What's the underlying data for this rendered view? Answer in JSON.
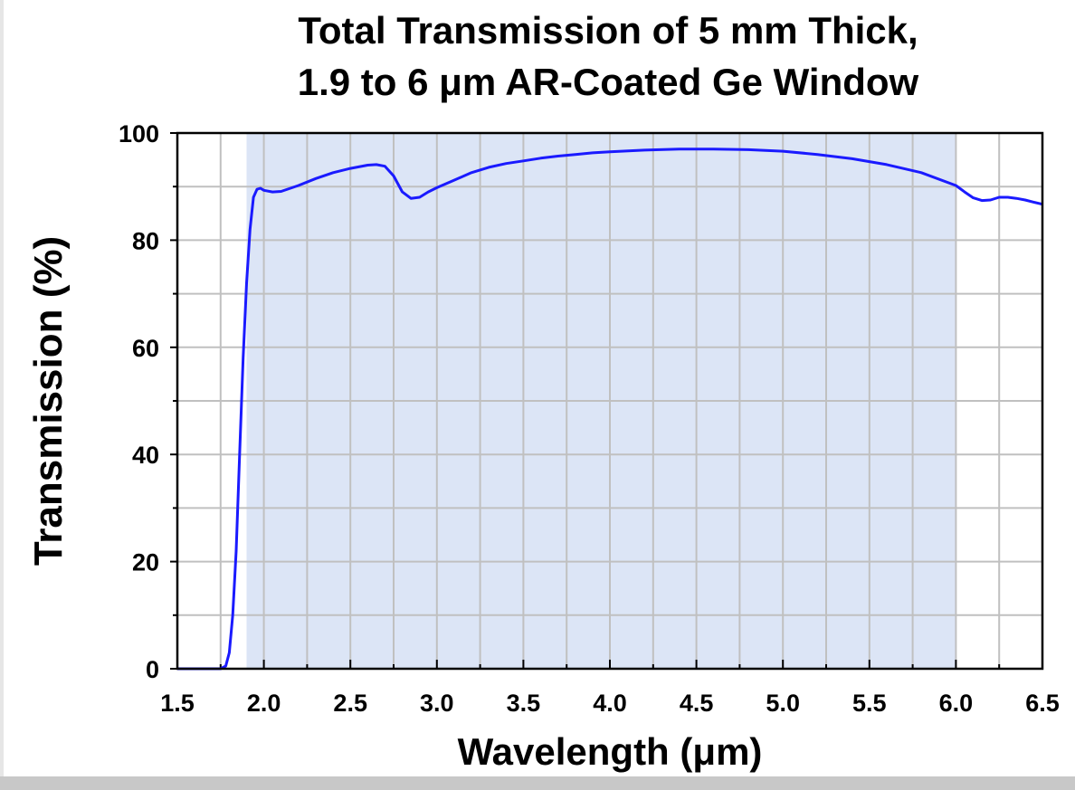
{
  "chart_data": {
    "type": "line",
    "title_lines": [
      "Total Transmission of 5 mm Thick,",
      "1.9 to 6 μm AR-Coated Ge Window"
    ],
    "xlabel": "Wavelength (μm)",
    "ylabel": "Transmission (%)",
    "xlim": [
      1.5,
      6.5
    ],
    "ylim": [
      0,
      100
    ],
    "x_ticks": [
      1.5,
      2.0,
      2.5,
      3.0,
      3.5,
      4.0,
      4.5,
      5.0,
      5.5,
      6.0,
      6.5
    ],
    "x_tick_labels": [
      "1.5",
      "2.0",
      "2.5",
      "3.0",
      "3.5",
      "4.0",
      "4.5",
      "5.0",
      "5.5",
      "6.0",
      "6.5"
    ],
    "y_ticks": [
      0,
      20,
      40,
      60,
      80,
      100
    ],
    "y_tick_labels": [
      "0",
      "20",
      "40",
      "60",
      "80",
      "100"
    ],
    "grid": true,
    "shaded_region": {
      "x_start": 1.9,
      "x_end": 6.0,
      "color": "#dce5f6"
    },
    "series": [
      {
        "name": "Transmission",
        "color": "#1a1aff",
        "x": [
          1.5,
          1.75,
          1.78,
          1.8,
          1.82,
          1.84,
          1.86,
          1.88,
          1.9,
          1.92,
          1.94,
          1.96,
          1.98,
          2.0,
          2.05,
          2.1,
          2.2,
          2.3,
          2.4,
          2.5,
          2.6,
          2.65,
          2.7,
          2.75,
          2.8,
          2.85,
          2.9,
          2.95,
          3.0,
          3.1,
          3.2,
          3.3,
          3.4,
          3.5,
          3.6,
          3.7,
          3.8,
          3.9,
          4.0,
          4.2,
          4.4,
          4.6,
          4.8,
          5.0,
          5.2,
          5.4,
          5.6,
          5.8,
          6.0,
          6.05,
          6.1,
          6.15,
          6.2,
          6.25,
          6.3,
          6.35,
          6.4,
          6.45,
          6.5
        ],
        "y": [
          0,
          0,
          0.5,
          3,
          10,
          22,
          40,
          58,
          72,
          82,
          88,
          89.5,
          89.7,
          89.3,
          89.0,
          89.1,
          90.2,
          91.5,
          92.6,
          93.4,
          94.0,
          94.1,
          93.8,
          92.0,
          89.0,
          87.8,
          88.0,
          89.0,
          89.8,
          91.2,
          92.6,
          93.6,
          94.3,
          94.8,
          95.3,
          95.7,
          96.0,
          96.3,
          96.5,
          96.8,
          97.0,
          97.0,
          96.9,
          96.6,
          96.0,
          95.2,
          94.1,
          92.6,
          90.2,
          89.0,
          87.9,
          87.4,
          87.5,
          88.0,
          88.0,
          87.8,
          87.5,
          87.1,
          86.7
        ]
      }
    ]
  },
  "colors": {
    "line": "#1a1aff",
    "shade": "#dce5f6",
    "grid": "#c0c0c0",
    "axis": "#000000",
    "footer_bar": "#c8c8c8"
  }
}
